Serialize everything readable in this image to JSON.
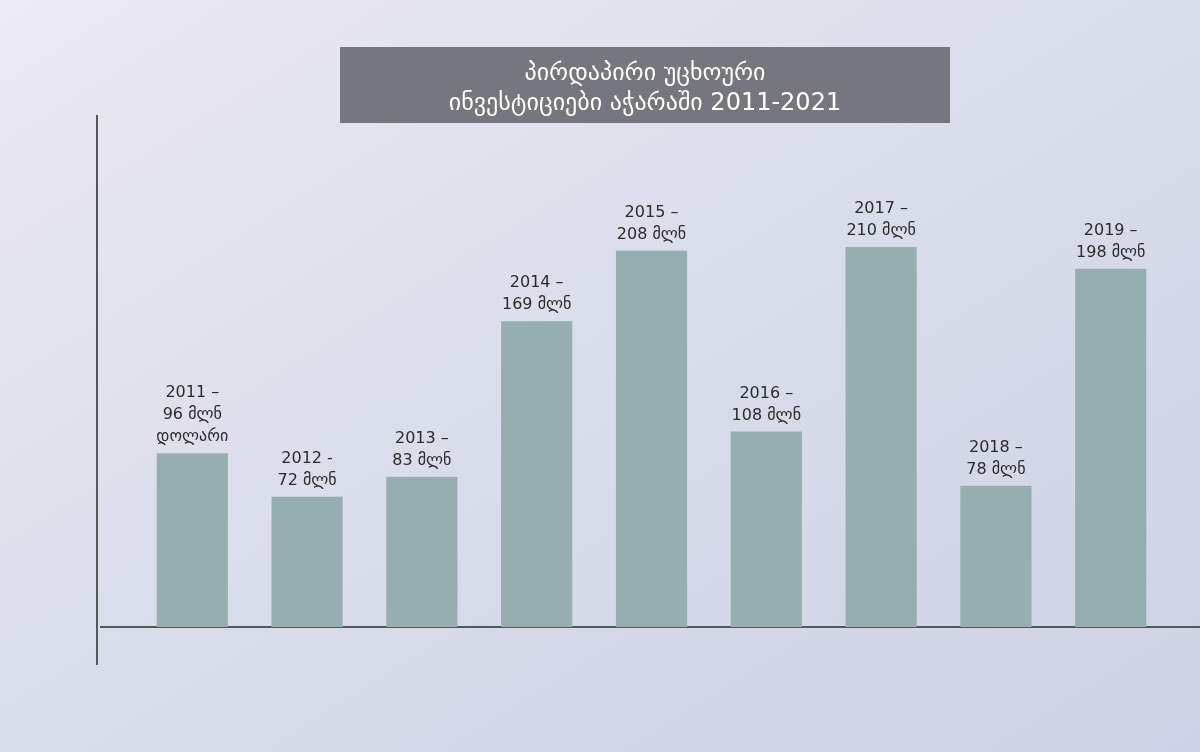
{
  "chart_data": {
    "type": "bar",
    "title": "პირდაპირი უცხოური\nინვესტიციები აჭარაში 2011-2021",
    "categories": [
      null,
      null,
      null,
      null,
      null,
      null,
      null,
      null,
      null
    ],
    "values": [
      96,
      72,
      83,
      169,
      208,
      108,
      210,
      78,
      198
    ],
    "value_labels": [
      "2011 –\n96 მლნ\nდოლარი",
      "2012 -\n72 მლნ",
      "2013 –\n83 მლნ",
      "2014 –\n169 მლნ",
      "2015 –\n208 მლნ",
      "2016 –\n108 მლნ",
      "2017 –\n210 მლნ",
      "2018 –\n78 მლნ",
      "2019 –\n198 მლნ"
    ],
    "color": "#97aeb0"
  }
}
